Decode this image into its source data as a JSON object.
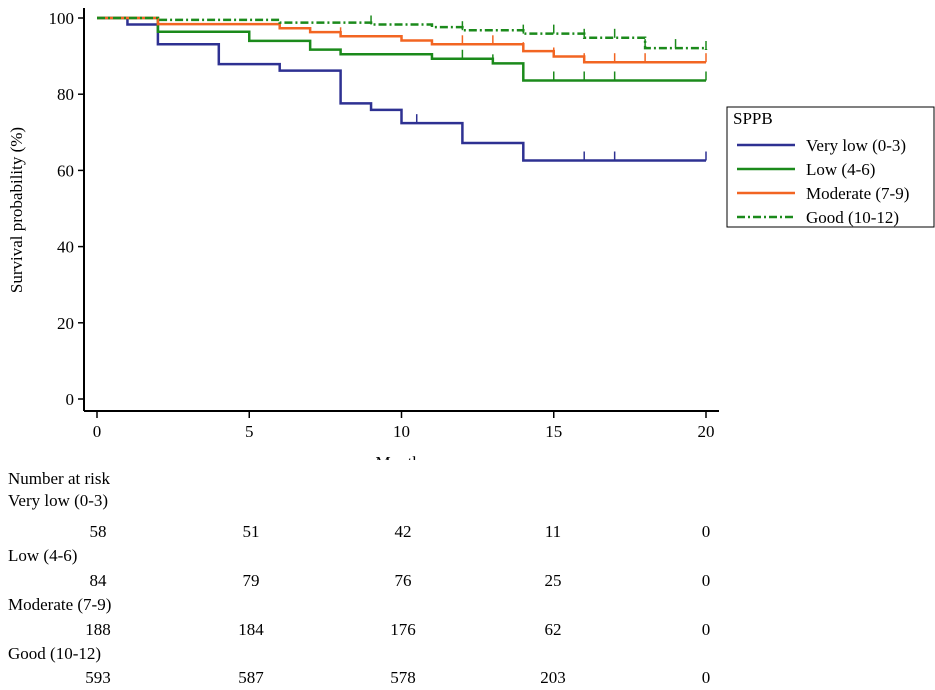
{
  "chart_data": {
    "type": "line",
    "subtype": "kaplan-meier",
    "xlabel": "Months",
    "ylabel": "Survival probability (%)",
    "xlim": [
      0,
      20
    ],
    "ylim": [
      0,
      100
    ],
    "x_ticks": [
      "0",
      "5",
      "10",
      "15",
      "20"
    ],
    "y_ticks": [
      "0",
      "20",
      "40",
      "60",
      "80",
      "100"
    ],
    "legend_title": "SPPB",
    "legend_position": "right",
    "series": [
      {
        "name": "Very low (0-3)",
        "color": "#2e3192",
        "style": "solid",
        "steps": [
          [
            0,
            100
          ],
          [
            1,
            98.3
          ],
          [
            2,
            93.1
          ],
          [
            4,
            87.9
          ],
          [
            6,
            86.2
          ],
          [
            8,
            77.6
          ],
          [
            9,
            75.9
          ],
          [
            10,
            72.4
          ],
          [
            12,
            67.2
          ],
          [
            14,
            62.6
          ],
          [
            20,
            62.6
          ]
        ],
        "censor_x": [
          10.5,
          12,
          14,
          16,
          17,
          20
        ]
      },
      {
        "name": "Low (4-6)",
        "color": "#1b8a1b",
        "style": "solid",
        "steps": [
          [
            0,
            100
          ],
          [
            2,
            96.4
          ],
          [
            5,
            94.0
          ],
          [
            7,
            91.7
          ],
          [
            8,
            90.5
          ],
          [
            11,
            89.3
          ],
          [
            13,
            88.1
          ],
          [
            14,
            83.6
          ],
          [
            20,
            83.6
          ]
        ],
        "censor_x": [
          12,
          13,
          14,
          15,
          16,
          17,
          20
        ]
      },
      {
        "name": "Moderate (7-9)",
        "color": "#f26522",
        "style": "solid",
        "steps": [
          [
            0,
            100
          ],
          [
            2,
            98.4
          ],
          [
            6,
            97.3
          ],
          [
            7,
            96.3
          ],
          [
            8,
            95.2
          ],
          [
            10,
            94.1
          ],
          [
            11,
            93.1
          ],
          [
            14,
            91.3
          ],
          [
            15,
            89.9
          ],
          [
            16,
            88.4
          ],
          [
            20,
            88.4
          ]
        ],
        "censor_x": [
          8,
          12,
          13,
          14,
          15,
          16,
          17,
          18,
          20
        ]
      },
      {
        "name": "Good (10-12)",
        "color": "#1b8a1b",
        "style": "dashdot",
        "steps": [
          [
            0,
            100
          ],
          [
            2,
            99.5
          ],
          [
            6,
            98.8
          ],
          [
            9,
            98.3
          ],
          [
            11,
            97.6
          ],
          [
            12,
            96.8
          ],
          [
            14,
            95.9
          ],
          [
            16,
            94.8
          ],
          [
            18,
            92.1
          ],
          [
            20,
            91.6
          ]
        ],
        "censor_x": [
          9,
          12,
          14,
          15,
          16,
          17,
          18,
          19,
          20
        ]
      }
    ]
  },
  "risk_table": {
    "title": "Number at risk",
    "groups": [
      {
        "label": "Very low (0-3)",
        "values": [
          "58",
          "51",
          "42",
          "11",
          "0"
        ]
      },
      {
        "label": "Low (4-6)",
        "values": [
          "84",
          "79",
          "76",
          "25",
          "0"
        ]
      },
      {
        "label": "Moderate (7-9)",
        "values": [
          "188",
          "184",
          "176",
          "62",
          "0"
        ]
      },
      {
        "label": "Good (10-12)",
        "values": [
          "593",
          "587",
          "578",
          "203",
          "0"
        ]
      }
    ]
  }
}
